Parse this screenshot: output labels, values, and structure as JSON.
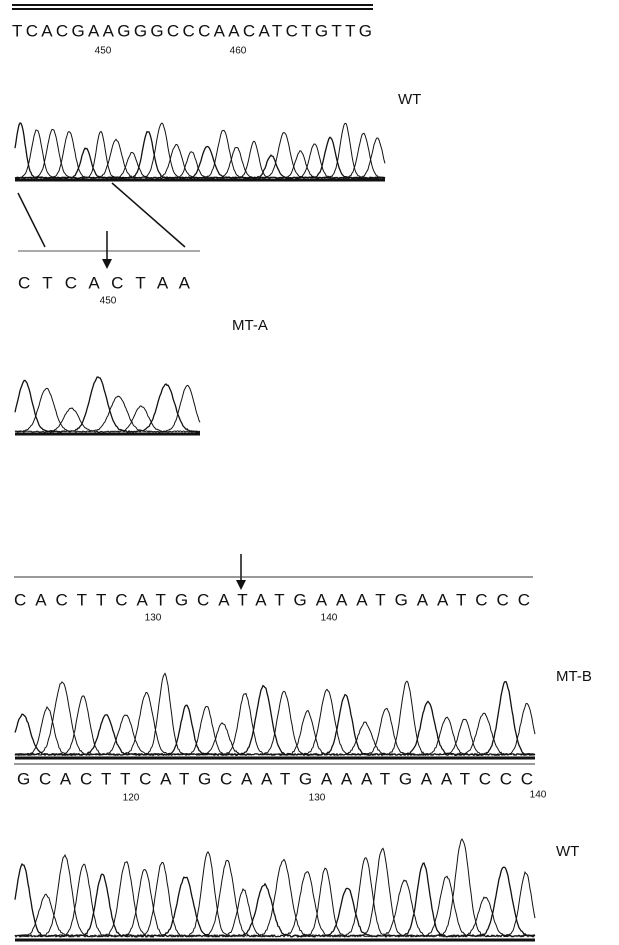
{
  "panels": [
    {
      "sequence": "TCACGAAGGGCCCAACATCTGTTG",
      "positions": [
        450,
        460
      ],
      "label": "WT"
    },
    {
      "sequence": "C T C A C T A A",
      "positions": [
        450
      ],
      "label": "MT-A"
    },
    {
      "sequence": "CACTTCATGCATATGAAATGAATCCC",
      "positions": [
        130,
        140
      ]
    },
    {
      "sequence": "GCACTTCATGCAATGAAATGAATCCC",
      "positions": [
        120,
        130,
        140
      ],
      "label": "MT-B"
    },
    {
      "label": "WT"
    }
  ]
}
